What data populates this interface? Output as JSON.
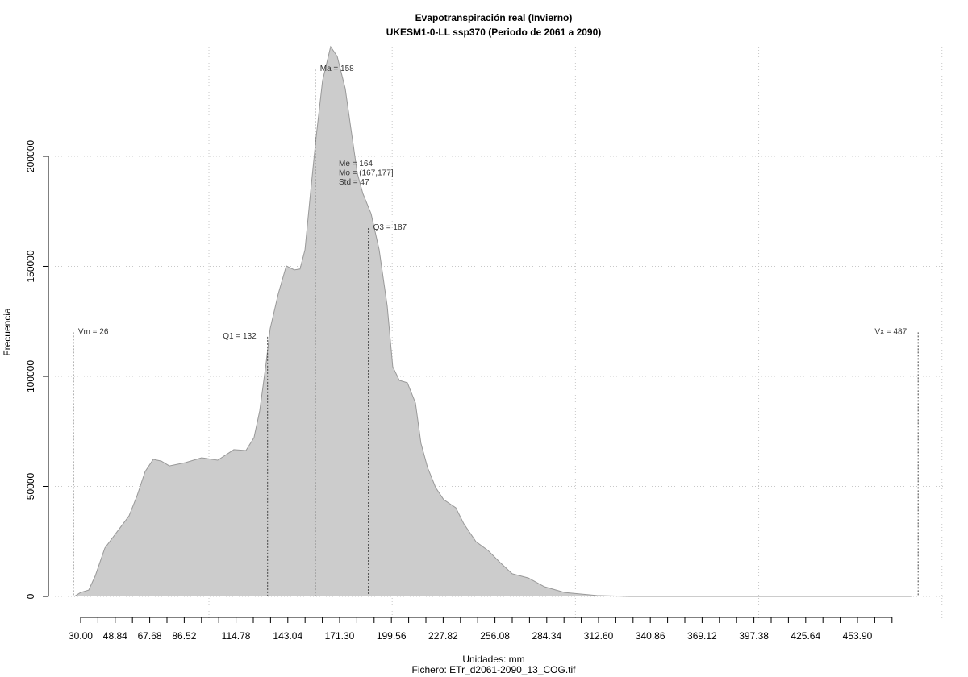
{
  "chart_data": {
    "type": "area",
    "title": "Evapotranspiración real (Invierno)",
    "subtitle": "UKESM1-0-LL ssp370 (Periodo de 2061 a 2090)",
    "xlabel": "Unidades: mm",
    "ylabel": "Frecuencia",
    "footer": "Fichero: ETr_d2061-2090_13_COG.tif",
    "color": "#cccccc",
    "x": [
      26.5,
      30.0,
      34.4,
      37.9,
      43.2,
      49.8,
      56.4,
      60.8,
      65.2,
      69.6,
      74.0,
      78.4,
      87.2,
      96.0,
      104.8,
      113.6,
      120.2,
      124.6,
      127.7,
      131.2,
      133.4,
      137.8,
      142.2,
      146.6,
      149.7,
      152.4,
      155.4,
      158.5,
      162.0,
      166.4,
      170.0,
      174.4,
      177.5,
      181.0,
      184.0,
      188.5,
      192.9,
      197.3,
      200.3,
      203.9,
      208.3,
      212.7,
      215.7,
      219.3,
      223.7,
      228.1,
      234.7,
      239.1,
      245.7,
      252.3,
      258.9,
      265.5,
      274.3,
      283.1,
      294.1,
      311.7,
      329.3,
      483.3
    ],
    "values": [
      0,
      1800,
      2900,
      9200,
      22000,
      29300,
      36600,
      45800,
      56800,
      62300,
      61500,
      59300,
      60800,
      63000,
      61900,
      66700,
      66300,
      72200,
      84300,
      106000,
      121600,
      137400,
      150200,
      148400,
      148800,
      157500,
      183100,
      208800,
      234400,
      249800,
      245400,
      230700,
      212400,
      192200,
      183100,
      173900,
      157500,
      131900,
      104400,
      98200,
      97100,
      87900,
      69600,
      58600,
      49500,
      44000,
      40300,
      33000,
      24900,
      20900,
      15400,
      10300,
      8400,
      4400,
      1800,
      400,
      0,
      0
    ],
    "xlim": [
      12.4,
      501
    ],
    "ylim": [
      -10250,
      249800
    ],
    "yticks": [
      0,
      50000,
      100000,
      150000,
      200000
    ],
    "xticks": [
      {
        "value": 30,
        "label": "30.00"
      },
      {
        "value": 48.84,
        "label": "48.84"
      },
      {
        "value": 67.68,
        "label": "67.68"
      },
      {
        "value": 86.52,
        "label": "86.52"
      },
      {
        "value": 114.78,
        "label": "114.78"
      },
      {
        "value": 143.04,
        "label": "143.04"
      },
      {
        "value": 171.3,
        "label": "171.30"
      },
      {
        "value": 199.56,
        "label": "199.56"
      },
      {
        "value": 227.82,
        "label": "227.82"
      },
      {
        "value": 256.08,
        "label": "256.08"
      },
      {
        "value": 284.34,
        "label": "284.34"
      },
      {
        "value": 312.6,
        "label": "312.60"
      },
      {
        "value": 340.86,
        "label": "340.86"
      },
      {
        "value": 369.12,
        "label": "369.12"
      },
      {
        "value": 397.38,
        "label": "397.38"
      },
      {
        "value": 425.64,
        "label": "425.64"
      },
      {
        "value": 453.9,
        "label": "453.90"
      }
    ],
    "xminorticks": [
      39.42,
      58.26,
      77.1,
      95.94,
      105.36,
      124.2,
      133.62,
      152.46,
      161.88,
      180.72,
      190.14,
      208.98,
      218.4,
      237.24,
      246.66,
      265.5,
      274.92,
      293.76,
      303.18,
      322.02,
      331.44,
      350.28,
      359.7,
      378.54,
      387.96,
      406.8,
      416.22,
      435.06,
      444.48,
      463.32,
      472.74
    ],
    "xgrid": [
      100,
      200,
      300,
      400,
      500
    ],
    "grid": true,
    "markers": [
      {
        "label": "Vm = 26",
        "x": 26,
        "top": 120000
      },
      {
        "label": "Q1 = 132",
        "x": 132,
        "top": 118000
      },
      {
        "label": "Ma = 158",
        "x": 158,
        "top": 239500
      },
      {
        "label": "Q3 = 187",
        "x": 187,
        "top": 167400
      },
      {
        "label": "Vx = 487",
        "x": 487,
        "top": 120000
      }
    ],
    "stats": [
      "Me = 164",
      "Mo = (167,177]",
      "Std = 47"
    ]
  }
}
